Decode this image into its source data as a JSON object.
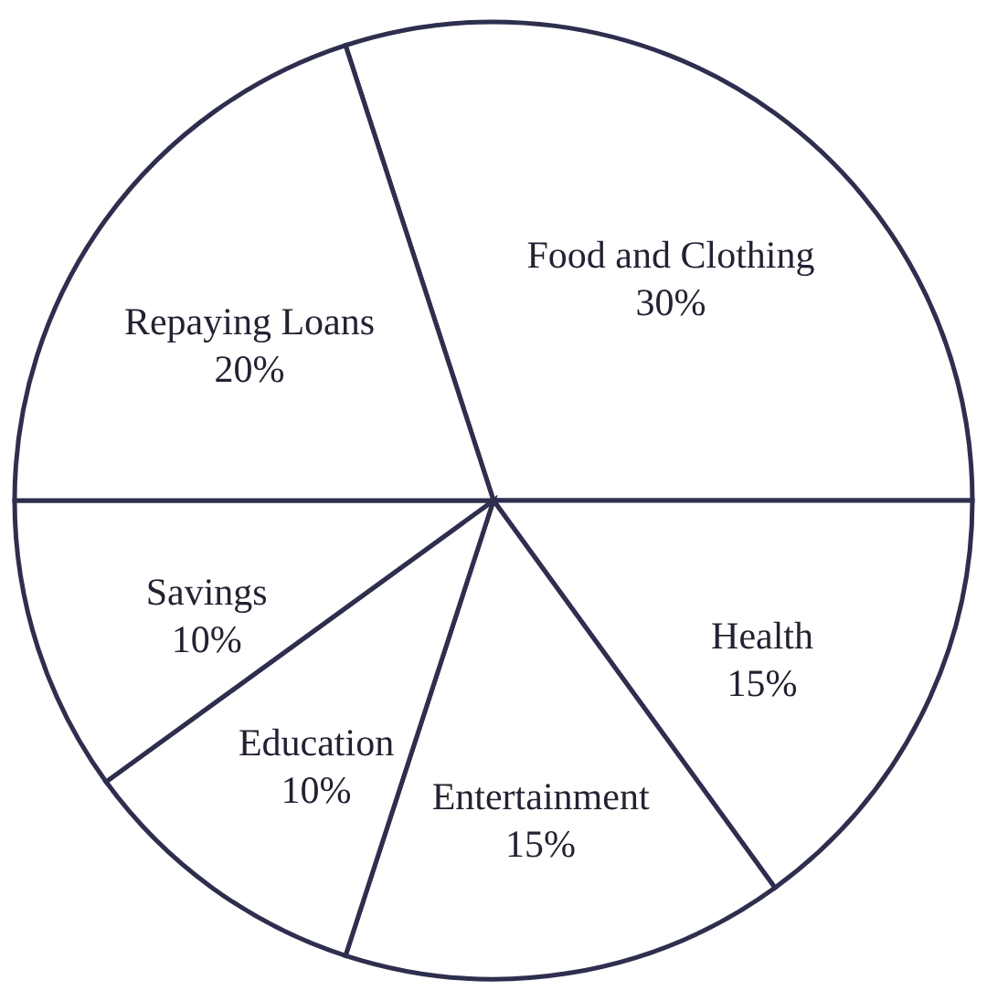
{
  "chart_data": {
    "type": "pie",
    "categories": [
      "Food and Clothing",
      "Health",
      "Entertainment",
      "Education",
      "Savings",
      "Repaying Loans"
    ],
    "values": [
      30,
      15,
      15,
      10,
      10,
      20
    ],
    "value_labels": [
      "30%",
      "15%",
      "15%",
      "10%",
      "10%",
      "20%"
    ],
    "colors": [
      "#ffffff",
      "#ffffff",
      "#ffffff",
      "#ffffff",
      "#ffffff",
      "#ffffff"
    ]
  }
}
